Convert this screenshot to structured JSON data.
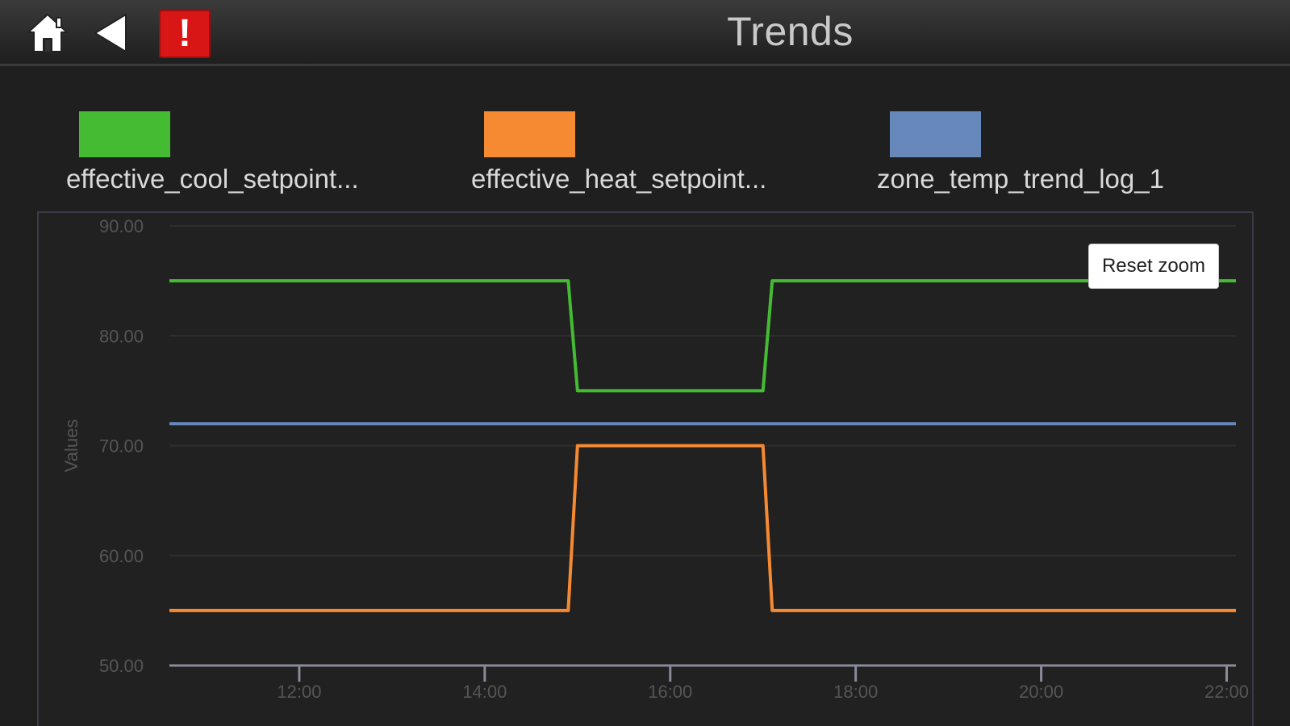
{
  "header": {
    "title": "Trends",
    "home_icon": "home-icon",
    "back_icon": "back-arrow-icon",
    "alarm_icon": "alarm-exclamation-icon",
    "alarm_symbol": "!"
  },
  "legend": [
    {
      "label": "effective_cool_setpoint...",
      "color": "#44bb33"
    },
    {
      "label": "effective_heat_setpoint...",
      "color": "#f58a33"
    },
    {
      "label": "zone_temp_trend_log_1",
      "color": "#6688bb"
    }
  ],
  "reset_zoom_label": "Reset zoom",
  "chart_data": {
    "type": "line",
    "ylabel": "Values",
    "xlabel": "",
    "ylim": [
      50,
      90
    ],
    "xlim": [
      10.6,
      22.1
    ],
    "y_ticks": [
      "90.00",
      "80.00",
      "70.00",
      "60.00",
      "50.00"
    ],
    "y_tick_values": [
      90,
      80,
      70,
      60,
      50
    ],
    "x_ticks": [
      "12:00",
      "14:00",
      "16:00",
      "18:00",
      "20:00",
      "22:00"
    ],
    "x_tick_values": [
      12,
      14,
      16,
      18,
      20,
      22
    ],
    "series": [
      {
        "name": "effective_cool_setpoint...",
        "color": "#44bb33",
        "x": [
          10.6,
          14.9,
          15.0,
          17.0,
          17.1,
          22.1
        ],
        "y": [
          85,
          85,
          75,
          75,
          85,
          85
        ]
      },
      {
        "name": "effective_heat_setpoint...",
        "color": "#f58a33",
        "x": [
          10.6,
          14.9,
          15.0,
          17.0,
          17.1,
          22.1
        ],
        "y": [
          55,
          55,
          70,
          70,
          55,
          55
        ]
      },
      {
        "name": "zone_temp_trend_log_1",
        "color": "#6688bb",
        "x": [
          10.6,
          22.1
        ],
        "y": [
          72,
          72
        ]
      }
    ]
  }
}
